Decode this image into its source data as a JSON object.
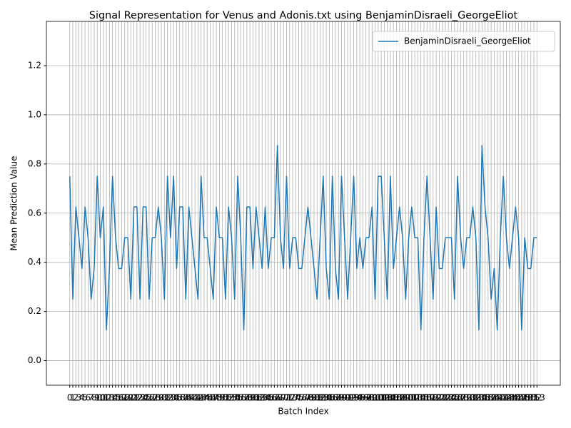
{
  "chart_data": {
    "type": "line",
    "title": "Signal Representation for Venus and Adonis.txt using BenjaminDisraeli_GeorgeEliot",
    "xlabel": "Batch Index",
    "ylabel": "Mean Prediction Value",
    "x": [
      0,
      1,
      2,
      3,
      4,
      5,
      6,
      7,
      8,
      9,
      10,
      11,
      12,
      13,
      14,
      15,
      16,
      17,
      18,
      19,
      20,
      21,
      22,
      23,
      24,
      25,
      26,
      27,
      28,
      29,
      30,
      31,
      32,
      33,
      34,
      35,
      36,
      37,
      38,
      39,
      40,
      41,
      42,
      43,
      44,
      45,
      46,
      47,
      48,
      49,
      50,
      51,
      52,
      53,
      54,
      55,
      56,
      57,
      58,
      59,
      60,
      61,
      62,
      63,
      64,
      65,
      66,
      67,
      68,
      69,
      70,
      71,
      72,
      73,
      74,
      75,
      76,
      77,
      78,
      79,
      80,
      81,
      82,
      83,
      84,
      85,
      86,
      87,
      88,
      89,
      90,
      91,
      92,
      93,
      94,
      95,
      96,
      97,
      98,
      99,
      100,
      101,
      102,
      103,
      104,
      105,
      106,
      107,
      108,
      109,
      110,
      111,
      112,
      113,
      114,
      115,
      116,
      117,
      118,
      119,
      120,
      121,
      122,
      123,
      124,
      125,
      126,
      127,
      128,
      129,
      130,
      131,
      132,
      133,
      134,
      135,
      136,
      137,
      138,
      139,
      140,
      141,
      142,
      143,
      144,
      145,
      146,
      147,
      148,
      149,
      150,
      151,
      152,
      153
    ],
    "series": [
      {
        "name": "BenjaminDisraeli_GeorgeEliot",
        "color": "#1f77b4",
        "values": [
          0.75,
          0.25,
          0.625,
          0.5,
          0.375,
          0.625,
          0.5,
          0.25,
          0.375,
          0.75,
          0.5,
          0.625,
          0.125,
          0.375,
          0.75,
          0.5,
          0.375,
          0.375,
          0.5,
          0.5,
          0.25,
          0.625,
          0.625,
          0.25,
          0.625,
          0.625,
          0.25,
          0.5,
          0.5,
          0.625,
          0.5,
          0.25,
          0.75,
          0.5,
          0.75,
          0.375,
          0.625,
          0.625,
          0.25,
          0.625,
          0.5,
          0.375,
          0.25,
          0.75,
          0.5,
          0.5,
          0.375,
          0.25,
          0.625,
          0.5,
          0.5,
          0.25,
          0.625,
          0.5,
          0.25,
          0.75,
          0.5,
          0.125,
          0.625,
          0.625,
          0.375,
          0.625,
          0.5,
          0.375,
          0.625,
          0.375,
          0.5,
          0.5,
          0.875,
          0.5,
          0.375,
          0.75,
          0.375,
          0.5,
          0.5,
          0.375,
          0.375,
          0.5,
          0.625,
          0.5,
          0.375,
          0.25,
          0.5,
          0.75,
          0.375,
          0.25,
          0.75,
          0.375,
          0.25,
          0.75,
          0.5,
          0.25,
          0.5,
          0.75,
          0.375,
          0.5,
          0.375,
          0.5,
          0.5,
          0.625,
          0.25,
          0.75,
          0.75,
          0.5,
          0.25,
          0.75,
          0.375,
          0.5,
          0.625,
          0.5,
          0.25,
          0.5,
          0.625,
          0.5,
          0.5,
          0.125,
          0.5,
          0.75,
          0.5,
          0.25,
          0.625,
          0.375,
          0.375,
          0.5,
          0.5,
          0.5,
          0.25,
          0.75,
          0.5,
          0.375,
          0.5,
          0.5,
          0.625,
          0.5,
          0.125,
          0.875,
          0.625,
          0.5,
          0.25,
          0.375,
          0.125,
          0.5,
          0.75,
          0.5,
          0.375,
          0.5,
          0.625,
          0.5,
          0.125,
          0.5,
          0.375,
          0.375,
          0.5,
          0.5
        ]
      }
    ],
    "xlim": [
      -7.65,
      160.65
    ],
    "xticks": [
      0,
      1,
      2,
      3,
      4,
      5,
      6,
      7,
      8,
      9,
      10,
      11,
      12,
      13,
      14,
      15,
      16,
      17,
      18,
      19,
      20,
      21,
      22,
      23,
      24,
      25,
      26,
      27,
      28,
      29,
      30,
      31,
      32,
      33,
      34,
      35,
      36,
      37,
      38,
      39,
      40,
      41,
      42,
      43,
      44,
      45,
      46,
      47,
      48,
      49,
      50,
      51,
      52,
      53,
      54,
      55,
      56,
      57,
      58,
      59,
      60,
      61,
      62,
      63,
      64,
      65,
      66,
      67,
      68,
      69,
      70,
      71,
      72,
      73,
      74,
      75,
      76,
      77,
      78,
      79,
      80,
      81,
      82,
      83,
      84,
      85,
      86,
      87,
      88,
      89,
      90,
      91,
      92,
      93,
      94,
      95,
      96,
      97,
      98,
      99,
      100,
      101,
      102,
      103,
      104,
      105,
      106,
      107,
      108,
      109,
      110,
      111,
      112,
      113,
      114,
      115,
      116,
      117,
      118,
      119,
      120,
      121,
      122,
      123,
      124,
      125,
      126,
      127,
      128,
      129,
      130,
      131,
      132,
      133,
      134,
      135,
      136,
      137,
      138,
      139,
      140,
      141,
      142,
      143,
      144,
      145,
      146,
      147,
      148,
      149,
      150,
      151,
      152,
      153
    ],
    "ylim": [
      -0.1,
      1.38
    ],
    "yticks": [
      {
        "value": 0,
        "label": "0.0"
      },
      0.2,
      0.4,
      0.6,
      0.8,
      {
        "value": 1,
        "label": "1.0"
      },
      1.2
    ],
    "grid": true,
    "legend": "upper right"
  }
}
